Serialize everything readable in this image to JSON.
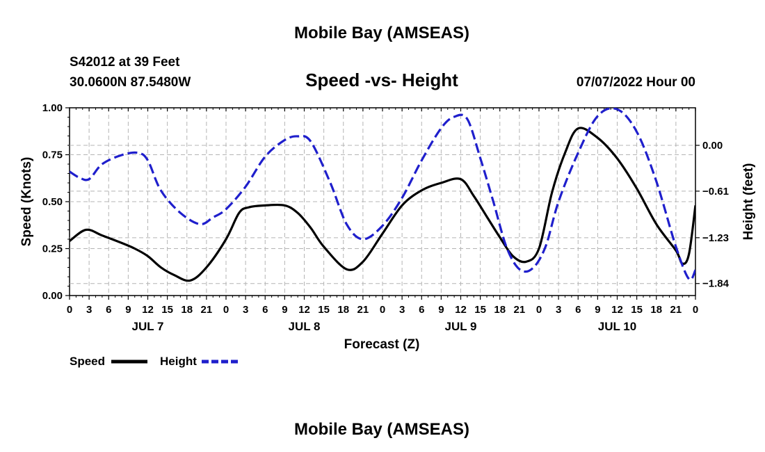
{
  "page": {
    "title": "Mobile Bay (AMSEAS)",
    "bottom_title": "Mobile Bay (AMSEAS)"
  },
  "station": {
    "name_line": "S42012 at 39 Feet",
    "coords_line": "30.0600N  87.5480W",
    "date_line": "07/07/2022 Hour 00"
  },
  "chart_data": {
    "type": "line",
    "title": "Speed -vs- Height",
    "xlabel": "Forecast (Z)",
    "ylabel_left": "Speed (Knots)",
    "ylabel_right": "Height (feet)",
    "x_unit": "hours since 07/07/2022 00Z",
    "xlim": [
      0,
      96
    ],
    "ylim_left": [
      0,
      1
    ],
    "ylim_right": [
      -2.0,
      0.5
    ],
    "grid": true,
    "x_ticks": [
      0,
      3,
      6,
      9,
      12,
      15,
      18,
      21,
      24,
      27,
      30,
      33,
      36,
      39,
      42,
      45,
      48,
      51,
      54,
      57,
      60,
      63,
      66,
      69,
      72,
      75,
      78,
      81,
      84,
      87,
      90,
      93,
      96
    ],
    "x_tick_labels": [
      "0",
      "3",
      "6",
      "9",
      "12",
      "15",
      "18",
      "21",
      "0",
      "3",
      "6",
      "9",
      "12",
      "15",
      "18",
      "21",
      "0",
      "3",
      "6",
      "9",
      "12",
      "15",
      "18",
      "21",
      "0",
      "3",
      "6",
      "9",
      "12",
      "15",
      "18",
      "21",
      "0"
    ],
    "day_labels": [
      {
        "label": "JUL 7",
        "at": 12
      },
      {
        "label": "JUL 8",
        "at": 36
      },
      {
        "label": "JUL 9",
        "at": 60
      },
      {
        "label": "JUL 10",
        "at": 84
      }
    ],
    "left_ticks": [
      0.0,
      0.25,
      0.5,
      0.75,
      1.0
    ],
    "left_tick_labels": [
      "0.00",
      "0.25",
      "0.50",
      "0.75",
      "1.00"
    ],
    "right_ticks": [
      0.0,
      -0.61,
      -1.23,
      -1.84
    ],
    "right_tick_labels": [
      "0.00",
      "−0.61",
      "−1.23",
      "−1.84"
    ],
    "legend_position": "bottom-left",
    "series": [
      {
        "name": "Speed",
        "axis": "left",
        "color": "#000000",
        "dash": "solid",
        "x": [
          0,
          2.5,
          5,
          8,
          10,
          12,
          14,
          16,
          18.5,
          21,
          24,
          26,
          27.5,
          30,
          33,
          35,
          37,
          39,
          42.5,
          45,
          48,
          51,
          54,
          57,
          60,
          62,
          64,
          66,
          68,
          70,
          72,
          74,
          76,
          78,
          81,
          84,
          87,
          90,
          93,
          94,
          95,
          96
        ],
        "values": [
          0.29,
          0.35,
          0.32,
          0.28,
          0.25,
          0.21,
          0.15,
          0.11,
          0.08,
          0.15,
          0.3,
          0.44,
          0.47,
          0.48,
          0.48,
          0.44,
          0.36,
          0.26,
          0.14,
          0.18,
          0.33,
          0.48,
          0.56,
          0.6,
          0.62,
          0.53,
          0.42,
          0.31,
          0.21,
          0.18,
          0.25,
          0.55,
          0.76,
          0.89,
          0.84,
          0.73,
          0.57,
          0.38,
          0.24,
          0.17,
          0.22,
          0.48
        ]
      },
      {
        "name": "Height",
        "axis": "right",
        "color": "#1f1fcc",
        "dash": "dashed",
        "x": [
          0,
          1.5,
          3,
          5,
          8,
          10.5,
          12,
          14,
          17,
          20,
          22,
          24,
          27,
          30,
          33,
          35,
          37,
          40,
          42.5,
          45,
          48,
          51,
          54,
          57,
          59,
          61,
          63,
          65,
          67,
          69,
          71,
          73,
          75,
          78,
          81,
          84,
          87,
          90,
          93,
          95,
          96
        ],
        "values": [
          -0.35,
          -0.43,
          -0.45,
          -0.25,
          -0.13,
          -0.1,
          -0.2,
          -0.6,
          -0.9,
          -1.05,
          -0.96,
          -0.85,
          -0.55,
          -0.15,
          0.07,
          0.12,
          0.05,
          -0.5,
          -1.05,
          -1.25,
          -1.07,
          -0.7,
          -0.2,
          0.23,
          0.38,
          0.35,
          -0.17,
          -0.75,
          -1.35,
          -1.65,
          -1.64,
          -1.35,
          -0.75,
          -0.1,
          0.39,
          0.48,
          0.18,
          -0.48,
          -1.35,
          -1.78,
          -1.66
        ]
      }
    ]
  },
  "legend": {
    "speed_label": "Speed",
    "height_label": "Height"
  }
}
